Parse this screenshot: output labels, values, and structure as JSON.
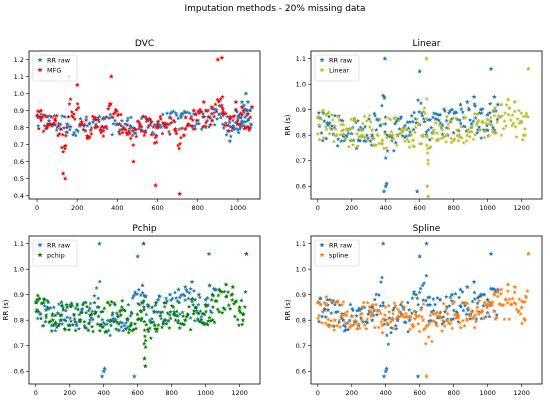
{
  "figure": {
    "suptitle": "Imputation methods - 20% missing data"
  },
  "chart_data": [
    {
      "type": "scatter",
      "title": "DVC",
      "xlabel": "",
      "ylabel": "",
      "xlim": [
        -40,
        1110
      ],
      "ylim": [
        0.38,
        1.25
      ],
      "xticks": [
        0,
        200,
        400,
        600,
        800,
        1000
      ],
      "yticks": [
        0.4,
        0.5,
        0.6,
        0.7,
        0.8,
        0.9,
        1.0,
        1.1,
        1.2
      ],
      "legend": "top-left",
      "grid": false,
      "series": [
        {
          "name": "RR raw",
          "color": "#1f77b4",
          "marker": "star",
          "x": [
            5,
            60,
            150,
            240,
            320,
            400,
            470,
            540,
            600,
            660,
            720,
            790,
            840,
            880,
            920,
            950,
            960,
            975,
            990,
            1000,
            1010,
            1020,
            1030,
            1040,
            1050,
            1060,
            1070
          ],
          "y": [
            0.86,
            0.84,
            0.82,
            0.78,
            0.8,
            0.82,
            0.8,
            0.78,
            0.82,
            0.86,
            0.88,
            0.88,
            0.9,
            0.91,
            0.93,
            0.78,
            0.72,
            0.8,
            0.9,
            0.82,
            0.86,
            0.95,
            0.93,
            1.0,
            0.95,
            0.9,
            0.92
          ]
        },
        {
          "name": "MFG",
          "color": "#ff0000",
          "marker": "star",
          "x": [
            0,
            20,
            50,
            90,
            130,
            140,
            160,
            200,
            250,
            290,
            330,
            370,
            410,
            450,
            480,
            520,
            560,
            590,
            600,
            640,
            690,
            710,
            740,
            780,
            830,
            870,
            900,
            920,
            930,
            960,
            990,
            1020,
            1050,
            1070
          ],
          "y": [
            0.87,
            0.9,
            0.8,
            0.85,
            0.53,
            0.5,
            1.1,
            1.05,
            0.75,
            0.8,
            0.78,
            1.1,
            0.82,
            0.76,
            0.6,
            0.78,
            0.85,
            0.46,
            0.8,
            0.82,
            0.78,
            0.41,
            0.86,
            0.9,
            0.95,
            0.92,
            1.2,
            1.21,
            0.88,
            0.85,
            0.95,
            0.92,
            0.88,
            0.92
          ]
        }
      ]
    },
    {
      "type": "scatter",
      "title": "Linear",
      "xlabel": "",
      "ylabel": "RR (s)",
      "xlim": [
        -40,
        1320
      ],
      "ylim": [
        0.55,
        1.13
      ],
      "xticks": [
        0,
        200,
        400,
        600,
        800,
        1000,
        1200
      ],
      "yticks": [
        0.6,
        0.7,
        0.8,
        0.9,
        1.0,
        1.1
      ],
      "legend": "top-left",
      "grid": false,
      "series": [
        {
          "name": "RR raw",
          "color": "#1f77b4",
          "marker": "star",
          "x": [
            5,
            60,
            150,
            240,
            320,
            395,
            400,
            470,
            540,
            600,
            660,
            720,
            790,
            840,
            880,
            920,
            960,
            1000,
            1020,
            1040,
            1060
          ],
          "y": [
            0.87,
            0.84,
            0.8,
            0.78,
            0.8,
            1.1,
            0.6,
            0.8,
            0.8,
            1.05,
            0.86,
            0.88,
            0.9,
            0.92,
            0.93,
            0.95,
            0.9,
            0.88,
            1.06,
            0.95,
            0.92
          ],
          "x2": [
            390,
            405,
            585
          ],
          "y2": [
            0.58,
            0.61,
            0.58
          ]
        },
        {
          "name": "Linear",
          "color": "#bcbd22",
          "marker": "star",
          "x": [
            0,
            50,
            100,
            150,
            200,
            260,
            320,
            380,
            440,
            500,
            560,
            620,
            640,
            645,
            650,
            700,
            760,
            820,
            880,
            940,
            1000,
            1040,
            1080,
            1120,
            1160,
            1200,
            1220,
            1240
          ],
          "y": [
            0.87,
            0.88,
            0.8,
            0.82,
            0.78,
            0.8,
            0.82,
            0.78,
            0.8,
            0.82,
            0.78,
            0.8,
            1.1,
            0.6,
            0.56,
            0.78,
            0.8,
            0.82,
            0.8,
            0.85,
            0.86,
            0.9,
            0.92,
            0.94,
            0.93,
            0.85,
            0.8,
            1.06
          ]
        }
      ]
    },
    {
      "type": "scatter",
      "title": "Pchip",
      "xlabel": "",
      "ylabel": "RR (s)",
      "xlim": [
        -40,
        1320
      ],
      "ylim": [
        0.55,
        1.13
      ],
      "xticks": [
        0,
        200,
        400,
        600,
        800,
        1000,
        1200
      ],
      "yticks": [
        0.6,
        0.7,
        0.8,
        0.9,
        1.0,
        1.1
      ],
      "legend": "top-left",
      "grid": false,
      "series": [
        {
          "name": "RR raw",
          "color": "#1f77b4",
          "marker": "star",
          "x": [
            5,
            60,
            150,
            240,
            320,
            375,
            400,
            470,
            540,
            600,
            660,
            720,
            790,
            840,
            880,
            920,
            960,
            1000,
            1020,
            1060
          ],
          "y": [
            0.87,
            0.84,
            0.8,
            0.78,
            0.8,
            1.1,
            0.6,
            0.8,
            0.8,
            1.05,
            0.86,
            0.88,
            0.9,
            0.92,
            0.93,
            0.95,
            0.9,
            0.88,
            1.06,
            0.92
          ],
          "x2": [
            390,
            405,
            580
          ],
          "y2": [
            0.58,
            0.61,
            0.58
          ]
        },
        {
          "name": "pchip",
          "color": "#008000",
          "marker": "star",
          "x": [
            0,
            50,
            100,
            150,
            200,
            260,
            320,
            380,
            440,
            500,
            560,
            620,
            635,
            640,
            645,
            700,
            760,
            820,
            880,
            940,
            1000,
            1040,
            1080,
            1120,
            1160,
            1200,
            1220,
            1240
          ],
          "y": [
            0.87,
            0.88,
            0.8,
            0.82,
            0.78,
            0.8,
            0.82,
            0.78,
            0.8,
            0.82,
            0.78,
            0.8,
            1.1,
            0.65,
            0.62,
            0.78,
            0.8,
            0.82,
            0.8,
            0.85,
            0.86,
            0.9,
            0.92,
            0.94,
            0.93,
            0.85,
            0.8,
            1.06
          ]
        }
      ]
    },
    {
      "type": "scatter",
      "title": "Spline",
      "xlabel": "",
      "ylabel": "RR (s)",
      "xlim": [
        -40,
        1320
      ],
      "ylim": [
        0.55,
        1.13
      ],
      "xticks": [
        0,
        200,
        400,
        600,
        800,
        1000,
        1200
      ],
      "yticks": [
        0.6,
        0.7,
        0.8,
        0.9,
        1.0,
        1.1
      ],
      "legend": "top-left",
      "grid": false,
      "series": [
        {
          "name": "RR raw",
          "color": "#1f77b4",
          "marker": "star",
          "x": [
            5,
            60,
            150,
            240,
            320,
            385,
            400,
            470,
            540,
            600,
            640,
            660,
            720,
            790,
            840,
            880,
            920,
            960,
            1000,
            1020,
            1060
          ],
          "y": [
            0.87,
            0.84,
            0.8,
            0.78,
            0.8,
            1.1,
            0.6,
            0.8,
            0.8,
            1.05,
            1.1,
            0.86,
            0.88,
            0.9,
            0.92,
            0.93,
            0.95,
            0.9,
            0.88,
            1.06,
            0.92
          ],
          "x2": [
            390,
            405,
            590
          ],
          "y2": [
            0.58,
            0.61,
            0.58
          ]
        },
        {
          "name": "spline",
          "color": "#ff7f0e",
          "marker": "star",
          "x": [
            0,
            50,
            100,
            150,
            200,
            260,
            320,
            380,
            440,
            500,
            560,
            620,
            640,
            700,
            760,
            820,
            880,
            940,
            1000,
            1040,
            1080,
            1120,
            1160,
            1200,
            1220,
            1240
          ],
          "y": [
            0.87,
            0.86,
            0.8,
            0.82,
            0.78,
            0.8,
            0.82,
            0.78,
            0.8,
            0.82,
            0.78,
            0.8,
            0.58,
            0.78,
            0.8,
            0.82,
            0.8,
            0.85,
            0.86,
            0.9,
            0.92,
            0.94,
            0.93,
            0.85,
            0.8,
            1.06
          ]
        }
      ]
    }
  ]
}
